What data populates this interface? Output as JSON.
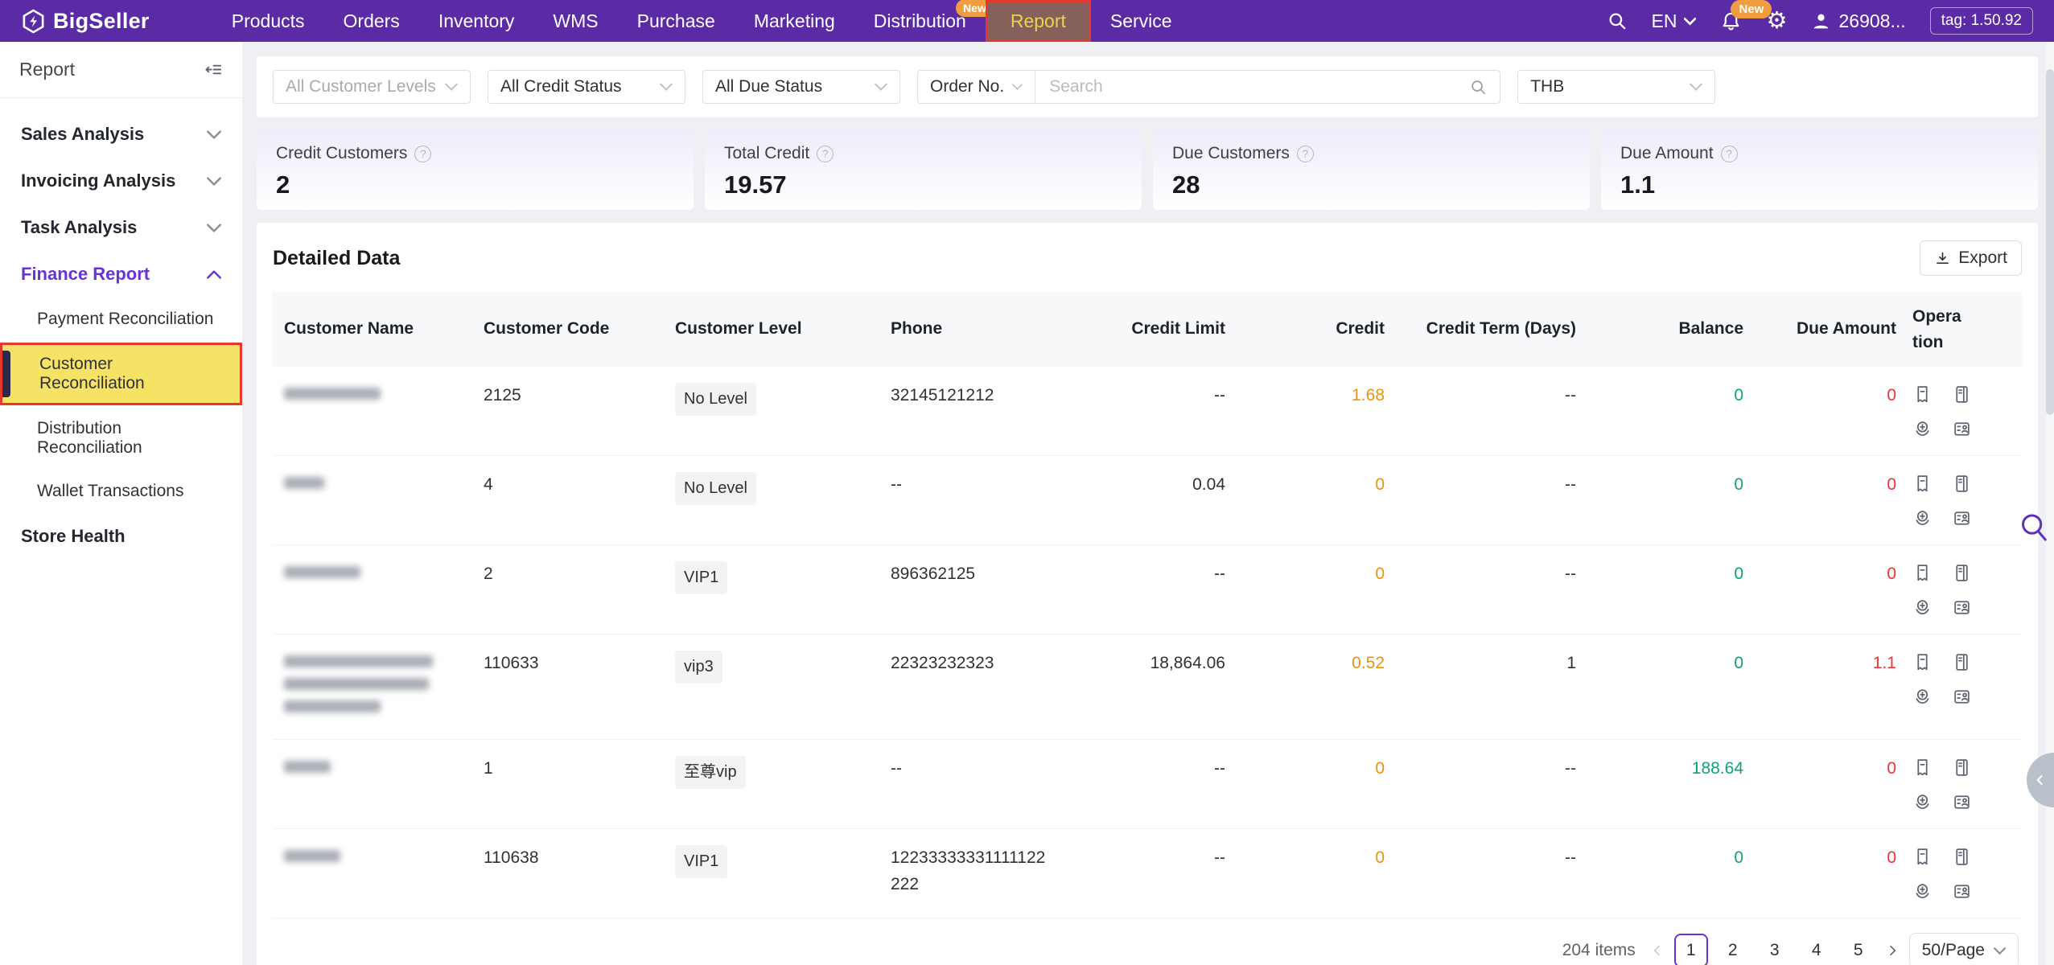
{
  "topnav": {
    "brand": "BigSeller",
    "items": [
      {
        "label": "Products"
      },
      {
        "label": "Orders"
      },
      {
        "label": "Inventory"
      },
      {
        "label": "WMS"
      },
      {
        "label": "Purchase"
      },
      {
        "label": "Marketing"
      },
      {
        "label": "Distribution",
        "badge": "New"
      },
      {
        "label": "Report",
        "active": true,
        "annotated": true
      },
      {
        "label": "Service"
      }
    ],
    "language": "EN",
    "notification_badge": "New",
    "user": "26908...",
    "version_tag": "tag: 1.50.92"
  },
  "sidebar": {
    "title": "Report",
    "sections": [
      {
        "label": "Sales Analysis",
        "chevron": "down"
      },
      {
        "label": "Invoicing Analysis",
        "chevron": "down"
      },
      {
        "label": "Task Analysis",
        "chevron": "down"
      },
      {
        "label": "Finance Report",
        "chevron": "up",
        "active": true,
        "children": [
          {
            "label": "Payment Reconciliation"
          },
          {
            "label": "Customer Reconciliation",
            "active": true,
            "annotated": true
          },
          {
            "label": "Distribution Reconciliation"
          },
          {
            "label": "Wallet Transactions"
          }
        ]
      },
      {
        "label": "Store Health"
      }
    ]
  },
  "filters": {
    "customer_levels": "All Customer Levels",
    "credit_status": "All Credit Status",
    "due_status": "All Due Status",
    "search_type": "Order No.",
    "search_placeholder": "Search",
    "currency": "THB"
  },
  "stats": [
    {
      "label": "Credit Customers",
      "value": "2"
    },
    {
      "label": "Total Credit",
      "value": "19.57"
    },
    {
      "label": "Due Customers",
      "value": "28"
    },
    {
      "label": "Due Amount",
      "value": "1.1"
    }
  ],
  "table": {
    "section_title": "Detailed Data",
    "export_label": "Export",
    "columns": [
      "Customer Name",
      "Customer Code",
      "Customer Level",
      "Phone",
      "Credit Limit",
      "Credit",
      "Credit Term (Days)",
      "Balance",
      "Due Amount",
      "Operation"
    ],
    "rows": [
      {
        "name_redacted": true,
        "name_blur": [
          120
        ],
        "code": "2125",
        "level": "No Level",
        "phone": "32145121212",
        "credit_limit": "--",
        "credit": "1.68",
        "term": "--",
        "balance": "0",
        "due": "0"
      },
      {
        "name_redacted": true,
        "name_blur": [
          50
        ],
        "code": "4",
        "level": "No Level",
        "phone": "--",
        "credit_limit": "0.04",
        "credit": "0",
        "term": "--",
        "balance": "0",
        "due": "0"
      },
      {
        "name_redacted": true,
        "name_blur": [
          95
        ],
        "code": "2",
        "level": "VIP1",
        "phone": "896362125",
        "credit_limit": "--",
        "credit": "0",
        "term": "--",
        "balance": "0",
        "due": "0"
      },
      {
        "name_redacted": true,
        "name_blur": [
          185,
          180,
          120
        ],
        "code": "110633",
        "level": "vip3",
        "phone": "22323232323",
        "credit_limit": "18,864.06",
        "credit": "0.52",
        "term": "1",
        "balance": "0",
        "due": "1.1"
      },
      {
        "name_redacted": true,
        "name_blur": [
          58
        ],
        "code": "1",
        "level": "至尊vip",
        "phone": "--",
        "credit_limit": "--",
        "credit": "0",
        "term": "--",
        "balance": "188.64",
        "due": "0"
      },
      {
        "name_redacted": true,
        "name_blur": [
          70
        ],
        "code": "110638",
        "level": "VIP1",
        "phone": "12233333331111122222",
        "credit_limit": "--",
        "credit": "0",
        "term": "--",
        "balance": "0",
        "due": "0"
      }
    ]
  },
  "pagination": {
    "total": "204 items",
    "pages": [
      "1",
      "2",
      "3",
      "4",
      "5"
    ],
    "current": "1",
    "page_size": "50/Page"
  },
  "icons": {
    "search": "magnifier",
    "language_caret": "chevron-down",
    "notifications": "bell",
    "settings": "gear",
    "account": "person",
    "sidebar_collapse": "indent-collapse-left",
    "export": "download",
    "help": "question-circle",
    "operation_icons": [
      "bill-record",
      "ledger",
      "repayment",
      "contact-card"
    ],
    "floating": [
      "purple-magnifier",
      "collapse-tab-chevron-left"
    ]
  },
  "colors": {
    "nav_purple": "#5b2ba6",
    "accent_purple": "#6733d9",
    "annotation_red": "#e8372c",
    "highlight_yellow": "#f6e366",
    "badge_orange": "#ef9d3f",
    "credit_orange": "#e8930c",
    "balance_green": "#0ca17c",
    "due_red": "#f0312f"
  }
}
